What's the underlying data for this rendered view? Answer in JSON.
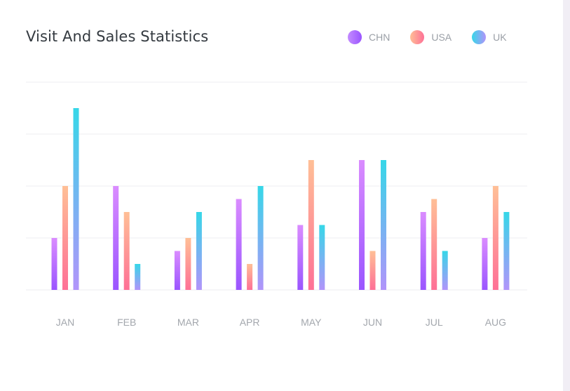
{
  "card": {
    "title": "Visit And Sales Statistics"
  },
  "legend": [
    {
      "label": "CHN",
      "icon": "gradient-dot",
      "color_from": "#c38bff",
      "color_to": "#9a55ff"
    },
    {
      "label": "USA",
      "icon": "gradient-dot",
      "color_from": "#ffbf96",
      "color_to": "#fe7096"
    },
    {
      "label": "UK",
      "icon": "gradient-dot",
      "color_from": "#36d7e8",
      "color_to": "#b194fa"
    }
  ],
  "chart_data": {
    "type": "bar",
    "title": "Visit And Sales Statistics",
    "xlabel": "",
    "ylabel": "",
    "categories": [
      "JAN",
      "FEB",
      "MAR",
      "APR",
      "MAY",
      "JUN",
      "JUL",
      "AUG"
    ],
    "series": [
      {
        "name": "CHN",
        "values": [
          20,
          40,
          15,
          35,
          25,
          50,
          30,
          20
        ],
        "gradient": [
          "#da8cff",
          "#9a55ff"
        ]
      },
      {
        "name": "USA",
        "values": [
          40,
          30,
          20,
          10,
          50,
          15,
          35,
          40
        ],
        "gradient": [
          "#ffbf96",
          "#fe7096"
        ]
      },
      {
        "name": "UK",
        "values": [
          70,
          10,
          30,
          40,
          25,
          50,
          15,
          30
        ],
        "gradient": [
          "#36d7e8",
          "#b194fa"
        ]
      }
    ],
    "ylim": [
      0,
      80
    ],
    "y_gridlines": [
      0,
      20,
      40,
      60,
      80
    ],
    "y_tick_labels_visible": false,
    "grid": true,
    "legend_position": "top-right"
  }
}
